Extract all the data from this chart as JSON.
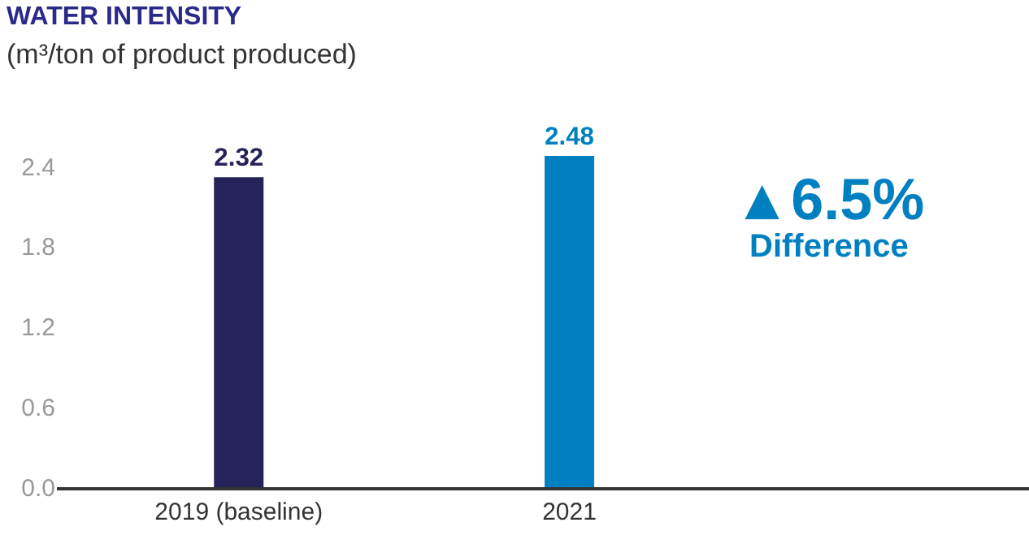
{
  "chart_data": {
    "type": "bar",
    "title": "WATER INTENSITY",
    "subtitle": "(m³/ton of product produced)",
    "categories": [
      "2019 (baseline)",
      "2021"
    ],
    "values": [
      2.32,
      2.48
    ],
    "colors": [
      "#25235a",
      "#0080c0"
    ],
    "data_labels": true,
    "ylim": [
      0,
      2.48
    ],
    "yticks": [
      {
        "value": 0,
        "label": "0.0"
      },
      0.6,
      1.2,
      1.8,
      2.4
    ],
    "annotations": [
      "▲6.5%",
      "Difference"
    ]
  }
}
